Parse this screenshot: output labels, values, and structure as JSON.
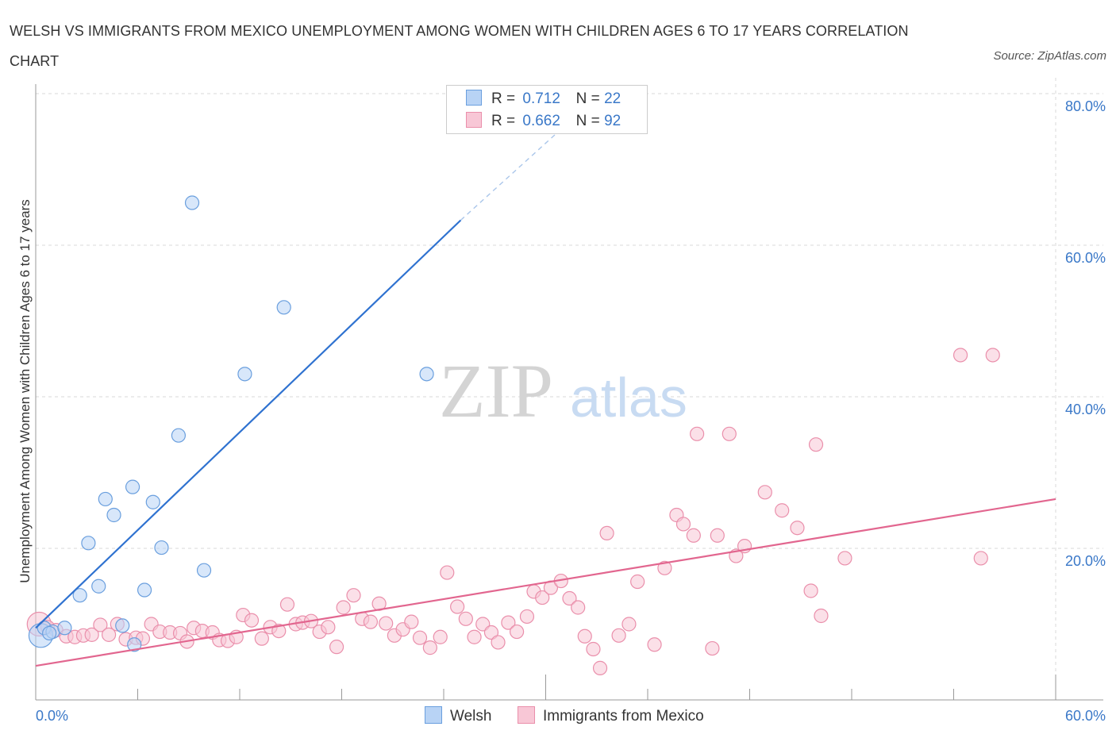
{
  "title": "WELSH VS IMMIGRANTS FROM MEXICO UNEMPLOYMENT AMONG WOMEN WITH CHILDREN AGES 6 TO 17 YEARS CORRELATION CHART",
  "source": "Source: ZipAtlas.com",
  "watermark": {
    "zip": "ZIP",
    "atlas": "atlas"
  },
  "legend": {
    "welsh": {
      "r_label": "R =",
      "r_value": "0.712",
      "n_label": "N =",
      "n_value": "22"
    },
    "mexico": {
      "r_label": "R =",
      "r_value": "0.662",
      "n_label": "N =",
      "n_value": "92"
    }
  },
  "colors": {
    "welsh_fill": "#b8d3f5",
    "welsh_stroke": "#6a9fde",
    "welsh_line": "#2f72d0",
    "mexico_fill": "#f8c7d6",
    "mexico_stroke": "#ea8fab",
    "mexico_line": "#e2668f",
    "axis_label": "#3a78c8",
    "grid": "#d8d8d8"
  },
  "chart_data": {
    "type": "scatter",
    "title": "WELSH VS IMMIGRANTS FROM MEXICO UNEMPLOYMENT AMONG WOMEN WITH CHILDREN AGES 6 TO 17 YEARS CORRELATION CHART",
    "xlabel": "",
    "ylabel": "Unemployment Among Women with Children Ages 6 to 17 years",
    "xlim": [
      0,
      60
    ],
    "ylim": [
      0,
      80
    ],
    "x_tick_labels": [
      "0.0%",
      "60.0%"
    ],
    "y_tick_labels": [
      "20.0%",
      "40.0%",
      "60.0%",
      "80.0%"
    ],
    "y_ticks": [
      20,
      40,
      60,
      80
    ],
    "grid": true,
    "legend_position": "bottom-center",
    "series": [
      {
        "name": "Welsh",
        "r": 0.712,
        "n": 22,
        "trend": {
          "x0": 0,
          "y0": 9.5,
          "x1": 25,
          "y1": 63.3,
          "dashed_to_x": 31,
          "dashed_to_y": 75.5
        },
        "points": [
          {
            "x": 0.3,
            "y": 8.5,
            "big": true
          },
          {
            "x": 0.5,
            "y": 9.5
          },
          {
            "x": 1.0,
            "y": 9.0
          },
          {
            "x": 1.7,
            "y": 9.5
          },
          {
            "x": 2.6,
            "y": 13.8
          },
          {
            "x": 3.1,
            "y": 20.7
          },
          {
            "x": 3.7,
            "y": 15.0
          },
          {
            "x": 4.1,
            "y": 26.5
          },
          {
            "x": 4.6,
            "y": 24.4
          },
          {
            "x": 5.1,
            "y": 9.8
          },
          {
            "x": 5.7,
            "y": 28.1
          },
          {
            "x": 5.8,
            "y": 7.3
          },
          {
            "x": 6.4,
            "y": 14.5
          },
          {
            "x": 6.9,
            "y": 26.1
          },
          {
            "x": 7.4,
            "y": 20.1
          },
          {
            "x": 8.4,
            "y": 34.9
          },
          {
            "x": 9.2,
            "y": 65.6
          },
          {
            "x": 9.9,
            "y": 17.1
          },
          {
            "x": 12.3,
            "y": 43.0
          },
          {
            "x": 14.6,
            "y": 51.8
          },
          {
            "x": 23.0,
            "y": 43.0
          },
          {
            "x": 0.8,
            "y": 8.8
          }
        ]
      },
      {
        "name": "Immigrants from Mexico",
        "r": 0.662,
        "n": 92,
        "trend": {
          "x0": 0,
          "y0": 4.5,
          "x1": 60,
          "y1": 26.5
        },
        "points": [
          {
            "x": 0.2,
            "y": 10.0,
            "big": true
          },
          {
            "x": 0.7,
            "y": 9.6
          },
          {
            "x": 1.2,
            "y": 9.2
          },
          {
            "x": 1.8,
            "y": 8.4
          },
          {
            "x": 2.3,
            "y": 8.3
          },
          {
            "x": 2.8,
            "y": 8.5
          },
          {
            "x": 3.3,
            "y": 8.6
          },
          {
            "x": 3.8,
            "y": 9.9
          },
          {
            "x": 4.3,
            "y": 8.6
          },
          {
            "x": 4.8,
            "y": 10.0
          },
          {
            "x": 5.3,
            "y": 8.0
          },
          {
            "x": 5.9,
            "y": 8.2
          },
          {
            "x": 6.3,
            "y": 8.1
          },
          {
            "x": 6.8,
            "y": 10.0
          },
          {
            "x": 7.3,
            "y": 9.0
          },
          {
            "x": 7.9,
            "y": 8.9
          },
          {
            "x": 8.5,
            "y": 8.8
          },
          {
            "x": 8.9,
            "y": 7.7
          },
          {
            "x": 9.3,
            "y": 9.5
          },
          {
            "x": 9.8,
            "y": 9.1
          },
          {
            "x": 10.4,
            "y": 8.9
          },
          {
            "x": 10.8,
            "y": 7.9
          },
          {
            "x": 11.3,
            "y": 7.8
          },
          {
            "x": 11.8,
            "y": 8.3
          },
          {
            "x": 12.2,
            "y": 11.2
          },
          {
            "x": 12.7,
            "y": 10.5
          },
          {
            "x": 13.3,
            "y": 8.1
          },
          {
            "x": 13.8,
            "y": 9.6
          },
          {
            "x": 14.3,
            "y": 9.1
          },
          {
            "x": 14.8,
            "y": 12.6
          },
          {
            "x": 15.3,
            "y": 10.0
          },
          {
            "x": 15.7,
            "y": 10.2
          },
          {
            "x": 16.2,
            "y": 10.4
          },
          {
            "x": 16.7,
            "y": 9.0
          },
          {
            "x": 17.2,
            "y": 9.6
          },
          {
            "x": 17.7,
            "y": 7.0
          },
          {
            "x": 18.1,
            "y": 12.2
          },
          {
            "x": 18.7,
            "y": 13.8
          },
          {
            "x": 19.2,
            "y": 10.7
          },
          {
            "x": 19.7,
            "y": 10.3
          },
          {
            "x": 20.2,
            "y": 12.7
          },
          {
            "x": 20.6,
            "y": 10.1
          },
          {
            "x": 21.1,
            "y": 8.5
          },
          {
            "x": 21.6,
            "y": 9.3
          },
          {
            "x": 22.1,
            "y": 10.3
          },
          {
            "x": 22.6,
            "y": 8.2
          },
          {
            "x": 23.2,
            "y": 6.9
          },
          {
            "x": 23.8,
            "y": 8.3
          },
          {
            "x": 24.2,
            "y": 16.8
          },
          {
            "x": 24.8,
            "y": 12.3
          },
          {
            "x": 25.3,
            "y": 10.7
          },
          {
            "x": 25.8,
            "y": 8.3
          },
          {
            "x": 26.3,
            "y": 10.0
          },
          {
            "x": 26.8,
            "y": 8.9
          },
          {
            "x": 27.2,
            "y": 7.6
          },
          {
            "x": 27.8,
            "y": 10.2
          },
          {
            "x": 28.3,
            "y": 9.0
          },
          {
            "x": 28.9,
            "y": 11.0
          },
          {
            "x": 29.3,
            "y": 14.3
          },
          {
            "x": 29.8,
            "y": 13.5
          },
          {
            "x": 30.3,
            "y": 14.8
          },
          {
            "x": 30.9,
            "y": 15.7
          },
          {
            "x": 31.4,
            "y": 13.4
          },
          {
            "x": 31.9,
            "y": 12.2
          },
          {
            "x": 32.3,
            "y": 8.4
          },
          {
            "x": 32.8,
            "y": 6.7
          },
          {
            "x": 33.2,
            "y": 4.2
          },
          {
            "x": 33.6,
            "y": 22.0
          },
          {
            "x": 34.3,
            "y": 8.5
          },
          {
            "x": 34.9,
            "y": 10.0
          },
          {
            "x": 35.4,
            "y": 15.6
          },
          {
            "x": 36.4,
            "y": 7.3
          },
          {
            "x": 37.0,
            "y": 17.4
          },
          {
            "x": 37.7,
            "y": 24.4
          },
          {
            "x": 38.1,
            "y": 23.2
          },
          {
            "x": 38.7,
            "y": 21.7
          },
          {
            "x": 38.9,
            "y": 35.1
          },
          {
            "x": 39.8,
            "y": 6.8
          },
          {
            "x": 40.1,
            "y": 21.7
          },
          {
            "x": 40.8,
            "y": 35.1
          },
          {
            "x": 41.2,
            "y": 19.0
          },
          {
            "x": 41.7,
            "y": 20.3
          },
          {
            "x": 42.9,
            "y": 27.4
          },
          {
            "x": 43.9,
            "y": 25.0
          },
          {
            "x": 44.8,
            "y": 22.7
          },
          {
            "x": 45.6,
            "y": 14.4
          },
          {
            "x": 45.9,
            "y": 33.7
          },
          {
            "x": 46.2,
            "y": 11.1
          },
          {
            "x": 47.6,
            "y": 18.7
          },
          {
            "x": 54.4,
            "y": 45.5
          },
          {
            "x": 55.6,
            "y": 18.7
          },
          {
            "x": 56.3,
            "y": 45.5
          }
        ]
      }
    ]
  },
  "bottom_legend": {
    "welsh": "Welsh",
    "mexico": "Immigrants from Mexico"
  }
}
